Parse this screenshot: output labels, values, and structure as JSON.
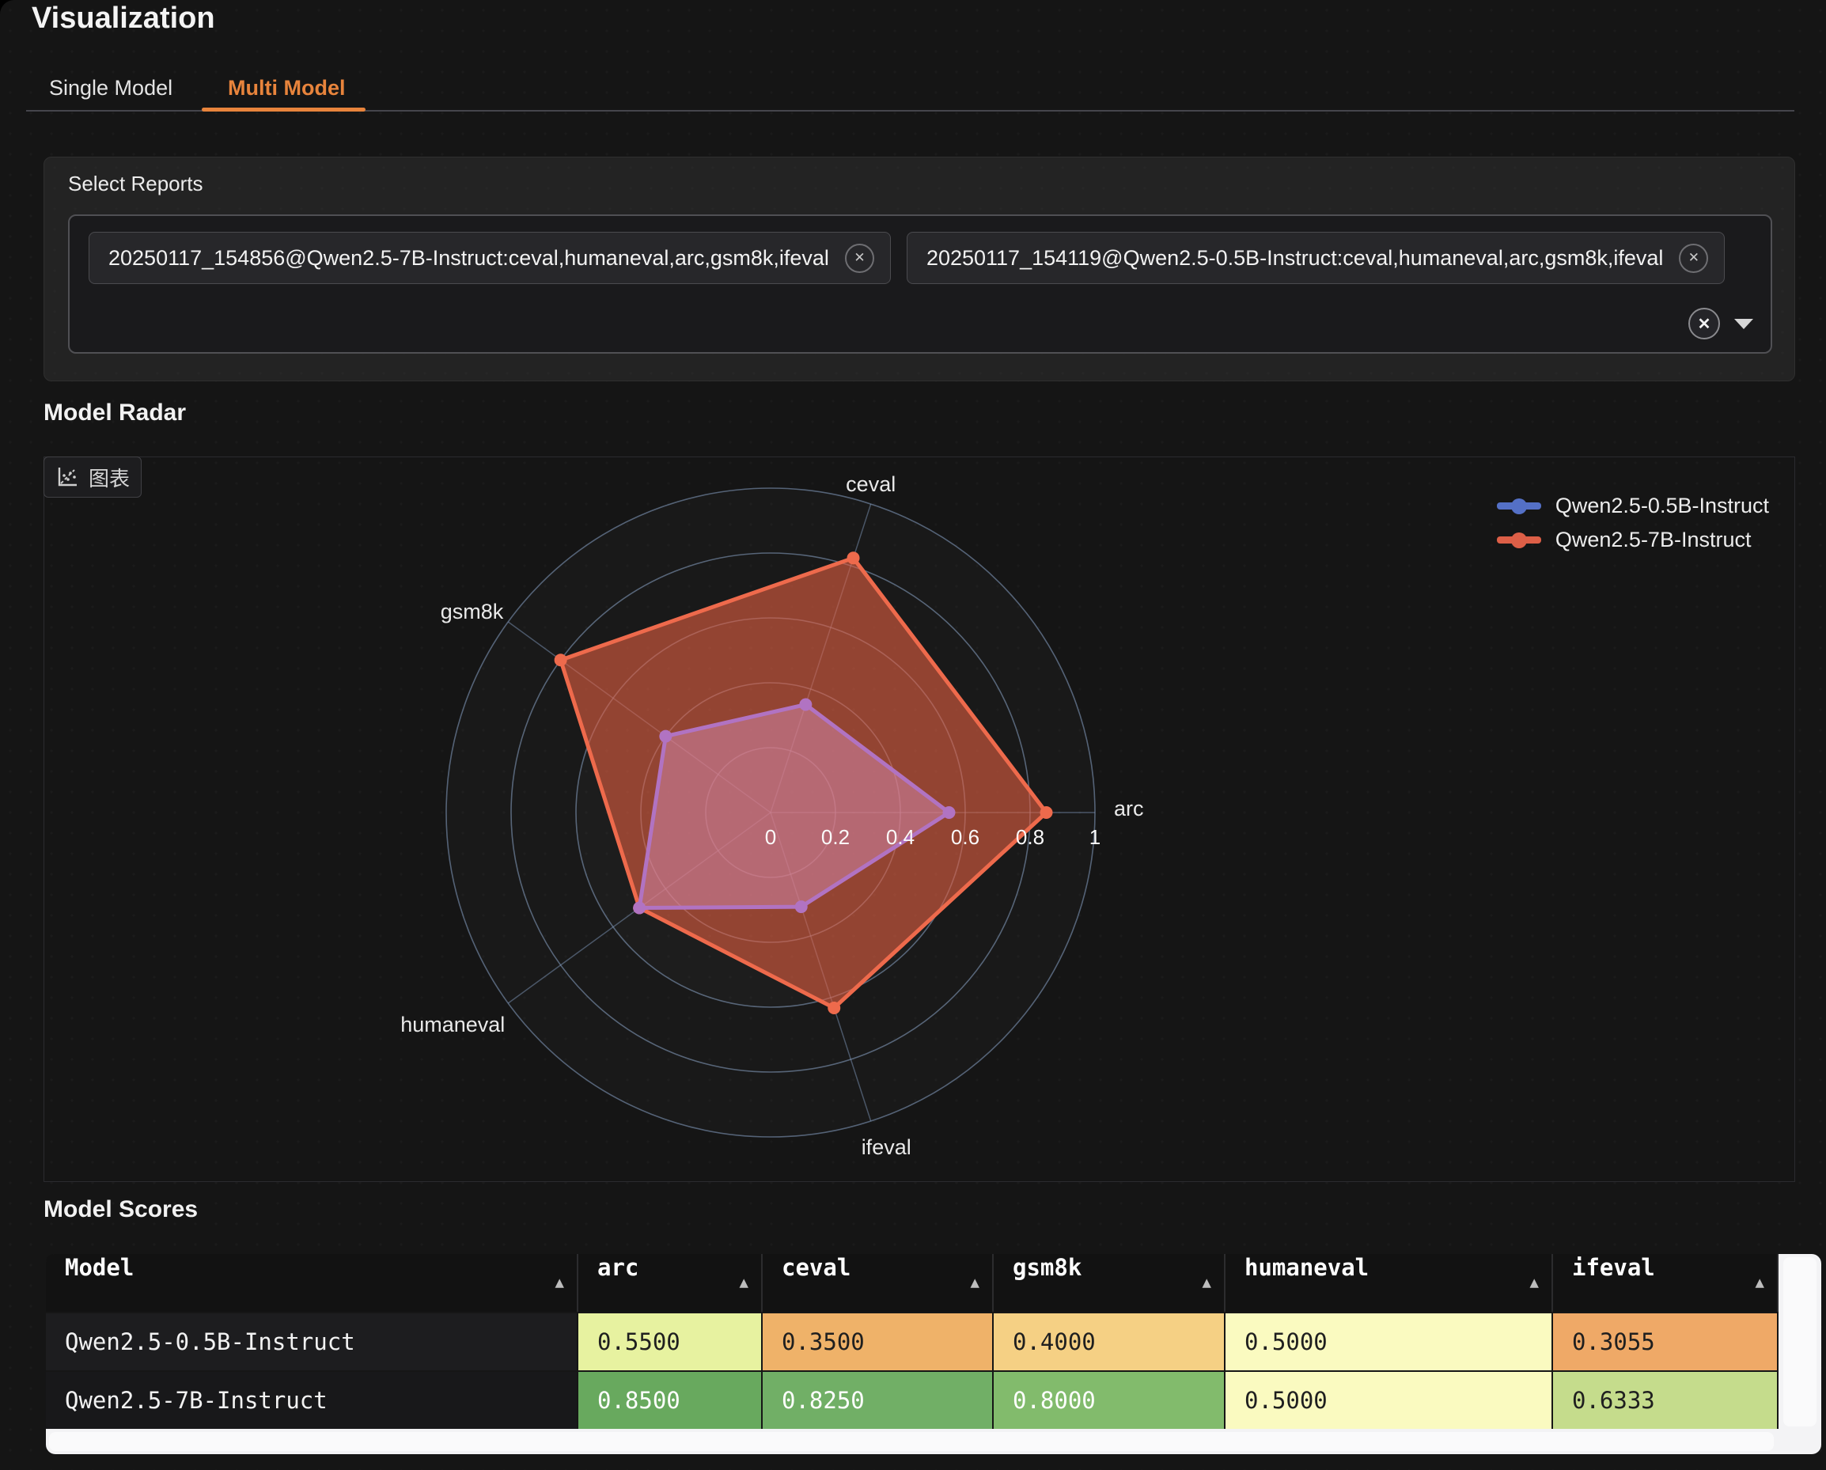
{
  "page": {
    "title": "Visualization"
  },
  "tabs": [
    {
      "label": "Single Model",
      "active": false
    },
    {
      "label": "Multi Model",
      "active": true
    }
  ],
  "accent_color": "#e8843c",
  "select_reports": {
    "label": "Select Reports",
    "chips": [
      {
        "text": "20250117_154856@Qwen2.5-7B-Instruct:ceval,humaneval,arc,gsm8k,ifeval",
        "remove_icon": "✕"
      },
      {
        "text": "20250117_154119@Qwen2.5-0.5B-Instruct:ceval,humaneval,arc,gsm8k,ifeval",
        "remove_icon": "✕"
      }
    ],
    "clear_all_icon": "✕"
  },
  "radar_section": {
    "heading": "Model Radar",
    "chart_tab_label": "图表"
  },
  "chart_data": {
    "type": "radar",
    "axes": [
      "arc",
      "ceval",
      "gsm8k",
      "humaneval",
      "ifeval"
    ],
    "max": 1,
    "ticks": [
      "0",
      "0.2",
      "0.4",
      "0.6",
      "0.8",
      "1"
    ],
    "grid_color": "#7e96b8",
    "series": [
      {
        "name": "Qwen2.5-0.5B-Instruct",
        "legend_color": "#5470c6",
        "line_color": "#b173c2",
        "fill_color": "rgba(216,140,178,0.5)",
        "values": [
          0.55,
          0.35,
          0.4,
          0.5,
          0.3055
        ]
      },
      {
        "name": "Qwen2.5-7B-Instruct",
        "legend_color": "#dd5f47",
        "line_color": "#ee6a4c",
        "fill_color": "rgba(226,95,65,0.6)",
        "values": [
          0.85,
          0.825,
          0.8,
          0.5,
          0.6333
        ]
      }
    ]
  },
  "scores_section": {
    "heading": "Model Scores",
    "sort_icon": "▲",
    "columns": [
      "Model",
      "arc",
      "ceval",
      "gsm8k",
      "humaneval",
      "ifeval"
    ],
    "rows": [
      {
        "model": "Qwen2.5-0.5B-Instruct",
        "cells": [
          {
            "value": "0.5500",
            "bg": "#e7f2a0",
            "fg": "#1f1f1f"
          },
          {
            "value": "0.3500",
            "bg": "#efb269",
            "fg": "#1f1f1f"
          },
          {
            "value": "0.4000",
            "bg": "#f5d084",
            "fg": "#1f1f1f"
          },
          {
            "value": "0.5000",
            "bg": "#fafac0",
            "fg": "#1f1f1f"
          },
          {
            "value": "0.3055",
            "bg": "#efa967",
            "fg": "#1f1f1f"
          }
        ]
      },
      {
        "model": "Qwen2.5-7B-Instruct",
        "cells": [
          {
            "value": "0.8500",
            "bg": "#68a95e",
            "fg": "#ffffff"
          },
          {
            "value": "0.8250",
            "bg": "#71af66",
            "fg": "#ffffff"
          },
          {
            "value": "0.8000",
            "bg": "#82bb6c",
            "fg": "#ffffff"
          },
          {
            "value": "0.5000",
            "bg": "#fafac0",
            "fg": "#1f1f1f"
          },
          {
            "value": "0.6333",
            "bg": "#c5dc8c",
            "fg": "#1f1f1f"
          }
        ]
      }
    ]
  }
}
